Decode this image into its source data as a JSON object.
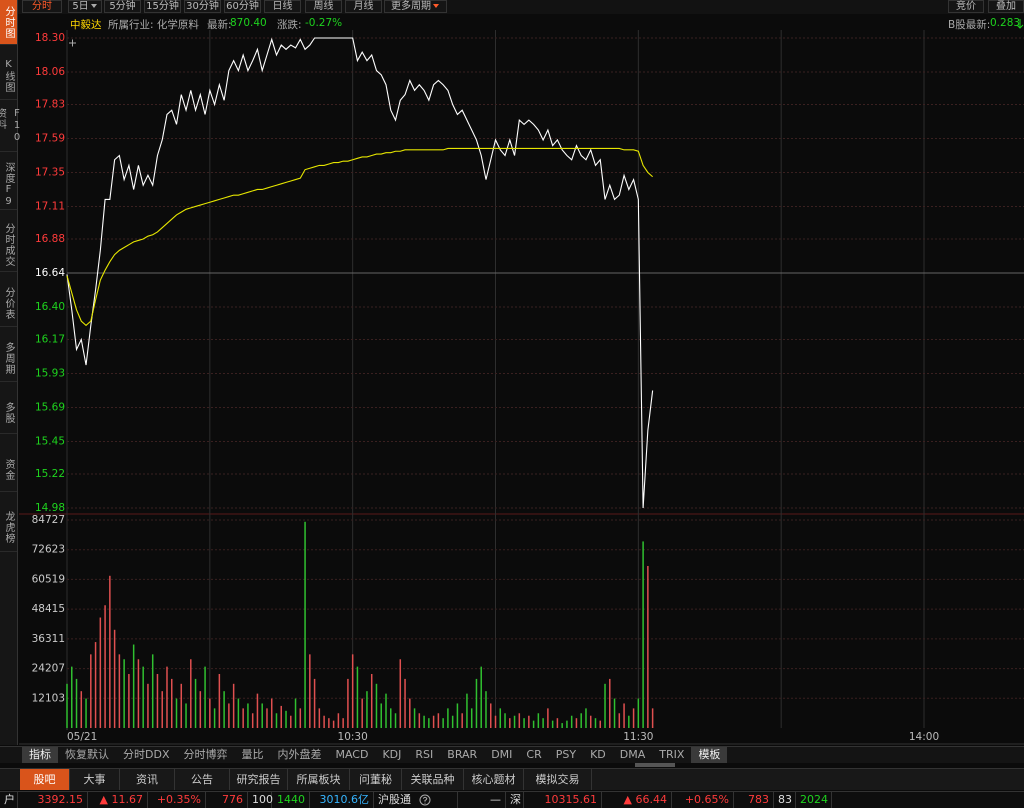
{
  "sidebar": [
    "分时图",
    "K线图",
    "F10资料",
    "深度F9",
    "分时成交",
    "分价表",
    "多周期",
    "多股",
    "资金",
    "龙虎榜"
  ],
  "period_tabs": [
    "分时",
    "5日",
    "5分钟",
    "15分钟",
    "30分钟",
    "60分钟",
    "日线",
    "周线",
    "月线",
    "更多周期"
  ],
  "right_tabs": [
    "竞价",
    "叠加"
  ],
  "info": {
    "name": "中毅达",
    "industry": "所属行业: 化学原料",
    "latest_label": "最新:",
    "latest": "870.40",
    "change_label": "涨跌:",
    "change": "-0.27%",
    "b_label": "B股最新:",
    "b_value": "0.283"
  },
  "chart_data": [
    {
      "type": "line",
      "x": [
        0,
        1,
        2,
        3,
        4,
        5,
        6,
        7,
        8,
        9,
        10,
        11,
        12,
        13,
        14,
        15,
        16,
        17,
        18,
        19,
        20,
        21,
        22,
        23,
        24,
        25,
        26,
        27,
        28,
        29,
        30,
        31,
        32,
        33,
        34,
        35,
        36,
        37,
        38,
        39,
        40,
        41,
        42,
        43,
        44,
        45,
        46,
        47,
        48,
        49,
        50,
        51,
        52,
        53,
        54,
        55,
        56,
        57,
        58,
        59,
        60,
        61,
        62,
        63,
        64,
        65,
        66,
        67,
        68,
        69,
        70,
        71,
        72,
        73,
        74,
        75,
        76,
        77,
        78,
        79,
        80,
        81,
        82,
        83,
        84,
        85,
        86,
        87,
        88,
        89,
        90,
        91,
        92,
        93,
        94,
        95,
        96,
        97,
        98,
        99,
        100,
        101,
        102,
        103,
        104,
        105,
        106,
        107,
        108,
        109,
        110,
        111,
        112,
        113,
        114,
        115,
        116,
        117,
        118,
        119,
        120,
        121,
        122,
        123
      ],
      "series": [
        {
          "color": "#ffffff",
          "values": [
            16.63,
            16.38,
            16.1,
            16.17,
            15.99,
            16.27,
            16.52,
            16.8,
            17.16,
            17.16,
            17.44,
            17.47,
            17.3,
            17.4,
            17.23,
            17.4,
            17.26,
            17.33,
            17.26,
            17.47,
            17.58,
            17.76,
            17.79,
            17.69,
            17.9,
            17.79,
            17.93,
            17.79,
            17.9,
            17.76,
            17.93,
            17.83,
            17.97,
            17.86,
            18.07,
            18.14,
            18.07,
            18.18,
            18.07,
            18.14,
            18.22,
            18.07,
            18.18,
            18.29,
            18.18,
            18.25,
            18.22,
            18.25,
            18.23,
            18.29,
            18.22,
            18.25,
            18.3,
            18.3,
            18.3,
            18.3,
            18.3,
            18.3,
            18.3,
            18.3,
            18.3,
            18.14,
            18.2,
            18.14,
            18.18,
            18.07,
            18.04,
            17.97,
            17.79,
            17.72,
            17.86,
            17.9,
            18.0,
            17.93,
            17.97,
            17.93,
            17.86,
            17.97,
            18.0,
            17.97,
            17.93,
            17.83,
            17.76,
            17.79,
            17.72,
            17.65,
            17.58,
            17.47,
            17.3,
            17.44,
            17.58,
            17.51,
            17.47,
            17.58,
            17.47,
            17.72,
            17.69,
            17.72,
            17.69,
            17.65,
            17.58,
            17.65,
            17.54,
            17.58,
            17.51,
            17.47,
            17.44,
            17.54,
            17.47,
            17.44,
            17.51,
            17.4,
            17.44,
            17.16,
            17.26,
            17.16,
            17.19,
            17.33,
            17.23,
            17.3,
            17.16,
            14.98,
            15.53,
            15.81
          ]
        },
        {
          "color": "#e6e600",
          "values": [
            16.62,
            16.5,
            16.38,
            16.3,
            16.27,
            16.3,
            16.45,
            16.59,
            16.66,
            16.72,
            16.77,
            16.8,
            16.82,
            16.84,
            16.86,
            16.87,
            16.88,
            16.9,
            16.91,
            16.93,
            16.96,
            16.99,
            17.02,
            17.05,
            17.07,
            17.09,
            17.1,
            17.11,
            17.12,
            17.13,
            17.14,
            17.15,
            17.16,
            17.17,
            17.18,
            17.19,
            17.19,
            17.2,
            17.21,
            17.22,
            17.23,
            17.23,
            17.24,
            17.25,
            17.26,
            17.27,
            17.28,
            17.29,
            17.3,
            17.31,
            17.37,
            17.38,
            17.39,
            17.4,
            17.4,
            17.41,
            17.42,
            17.42,
            17.43,
            17.43,
            17.44,
            17.45,
            17.46,
            17.46,
            17.47,
            17.48,
            17.48,
            17.49,
            17.49,
            17.5,
            17.5,
            17.51,
            17.51,
            17.51,
            17.51,
            17.51,
            17.51,
            17.51,
            17.51,
            17.51,
            17.52,
            17.52,
            17.52,
            17.52,
            17.52,
            17.52,
            17.52,
            17.52,
            17.52,
            17.52,
            17.52,
            17.52,
            17.52,
            17.52,
            17.52,
            17.52,
            17.52,
            17.52,
            17.52,
            17.52,
            17.52,
            17.52,
            17.52,
            17.52,
            17.52,
            17.52,
            17.52,
            17.52,
            17.52,
            17.52,
            17.52,
            17.52,
            17.52,
            17.52,
            17.52,
            17.52,
            17.52,
            17.51,
            17.51,
            17.51,
            17.5,
            17.4,
            17.35,
            17.32
          ]
        }
      ],
      "xlim": [
        0,
        201
      ],
      "xticks": [
        {
          "value": 0,
          "label": "05/21"
        },
        {
          "value": 30,
          "label": null
        },
        {
          "value": 60,
          "label": "10:30"
        },
        {
          "value": 90,
          "label": null
        },
        {
          "value": 120,
          "label": "11:30"
        },
        {
          "value": 150,
          "label": null
        },
        {
          "value": 180,
          "label": "14:00"
        }
      ],
      "ylim": [
        14.98,
        18.3
      ],
      "yticks": [
        {
          "value": 18.3,
          "label": "18.30"
        },
        18.06,
        17.83,
        17.59,
        17.35,
        17.11,
        16.88,
        16.64,
        {
          "value": 16.4,
          "label": "16.40"
        },
        16.17,
        15.93,
        15.69,
        15.45,
        15.22,
        14.98
      ],
      "base": 16.64,
      "up_color": "#ff3b3b",
      "down_color": "#1ed31e",
      "grid": true
    },
    {
      "type": "bar",
      "values": [
        18000,
        25000,
        20000,
        15000,
        12000,
        30000,
        35000,
        45000,
        50000,
        62000,
        40000,
        30000,
        28000,
        22000,
        34000,
        28000,
        25000,
        18000,
        30000,
        22000,
        15000,
        25000,
        20000,
        12000,
        18000,
        10000,
        28000,
        20000,
        15000,
        25000,
        12000,
        8000,
        22000,
        15000,
        10000,
        18000,
        12000,
        8000,
        10000,
        6000,
        14000,
        10000,
        8000,
        12000,
        6000,
        9000,
        7000,
        5000,
        12000,
        8000,
        84000,
        30000,
        20000,
        8000,
        5000,
        4000,
        3000,
        6000,
        4000,
        20000,
        30000,
        25000,
        12000,
        15000,
        22000,
        18000,
        10000,
        14000,
        8000,
        6000,
        28000,
        20000,
        12000,
        8000,
        6000,
        5000,
        4000,
        5000,
        6000,
        4000,
        8000,
        5000,
        10000,
        6000,
        14000,
        8000,
        20000,
        25000,
        15000,
        10000,
        5000,
        8000,
        6000,
        4000,
        5000,
        6000,
        4000,
        5000,
        3000,
        6000,
        4000,
        8000,
        3000,
        4000,
        2000,
        3000,
        5000,
        4000,
        6000,
        8000,
        5000,
        4000,
        3000,
        18000,
        20000,
        12000,
        6000,
        10000,
        5000,
        8000,
        12000,
        76000,
        66000,
        8000
      ],
      "ylim": [
        0,
        84727
      ],
      "yticks": [
        84727,
        72623,
        60519,
        48415,
        36311,
        24207,
        12103
      ],
      "up_color": "#e05050",
      "down_color": "#30c030"
    }
  ],
  "indicator_tabs": [
    "指标",
    "恢复默认",
    "分时DDX",
    "分时博弈",
    "量比",
    "内外盘差",
    "MACD",
    "KDJ",
    "RSI",
    "BRAR",
    "DMI",
    "CR",
    "PSY",
    "KD",
    "DMA",
    "TRIX",
    "模板"
  ],
  "info_tabs": [
    "股吧",
    "大事",
    "资讯",
    "公告",
    "研究报告",
    "所属板块",
    "问董秘",
    "关联品种",
    "核心题材",
    "模拟交易"
  ],
  "status": [
    "户",
    "3392.15",
    "▲ 11.67",
    "+0.35%",
    "776",
    "100",
    "1440",
    "3010.6亿",
    "沪股通",
    "—",
    "深",
    "10315.61",
    "▲ 66.44",
    "+0.65%",
    "783",
    "83",
    "2024"
  ]
}
